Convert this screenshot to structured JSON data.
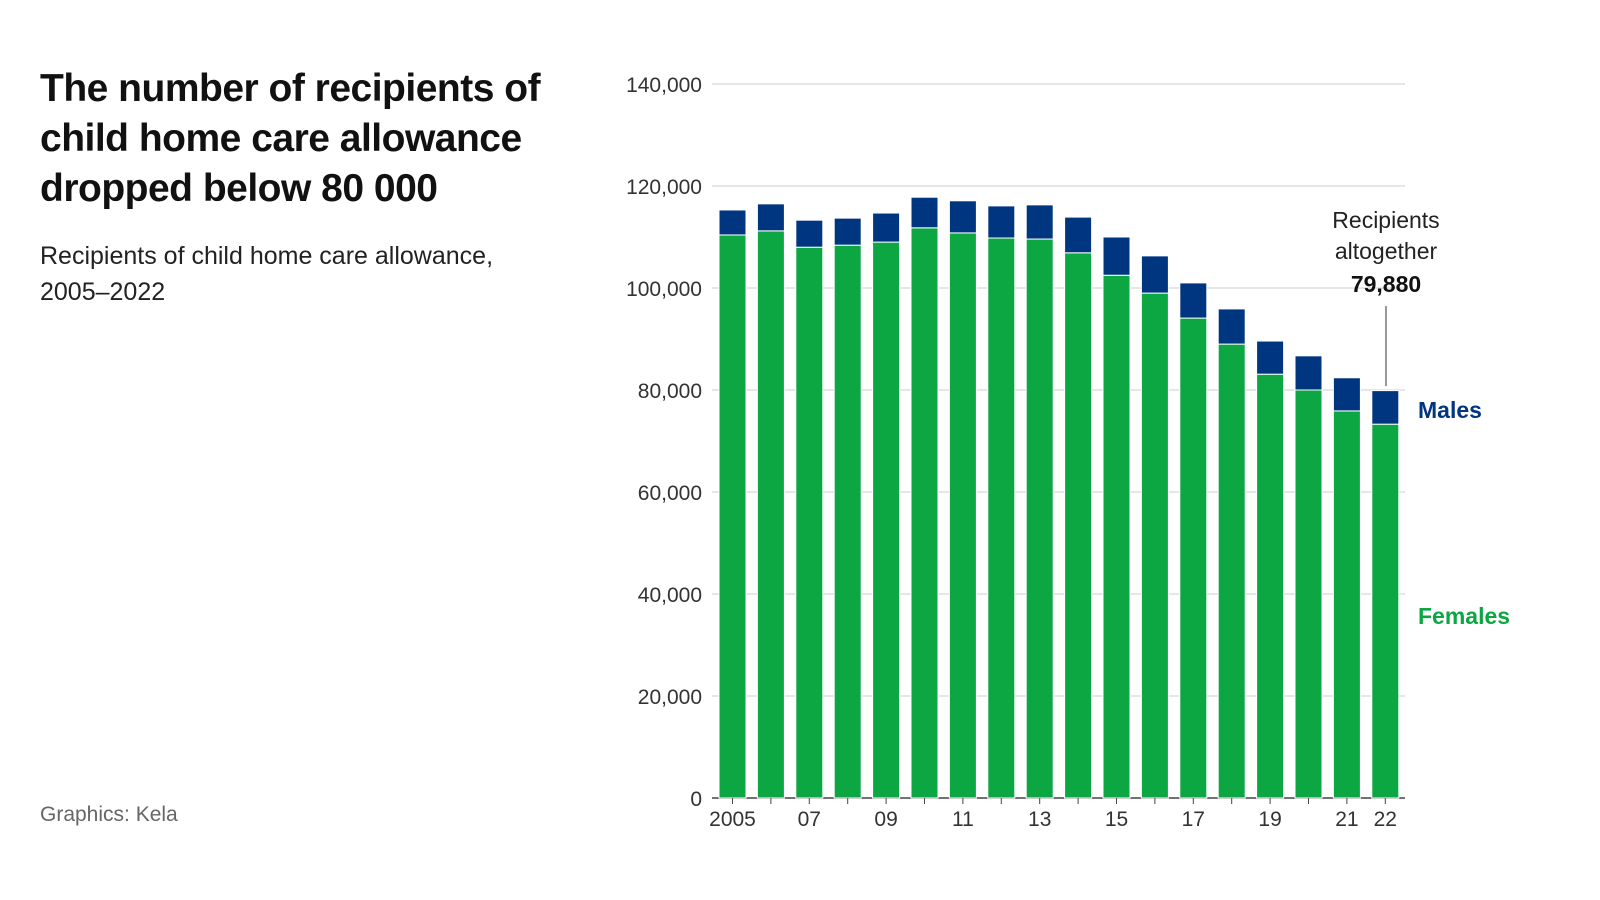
{
  "title": "The number of recipients of child home care allowance dropped below 80 000",
  "subtitle": "Recipients of child home care allowance, 2005–2022",
  "credit": "Graphics: Kela",
  "chart_data": {
    "type": "bar",
    "stacked": true,
    "categories": [
      "2005",
      "2006",
      "2007",
      "2008",
      "2009",
      "2010",
      "2011",
      "2012",
      "2013",
      "2014",
      "2015",
      "2016",
      "2017",
      "2018",
      "2019",
      "2020",
      "2021",
      "2022"
    ],
    "x_tick_labels": [
      "2005",
      "",
      "07",
      "",
      "09",
      "",
      "11",
      "",
      "13",
      "",
      "15",
      "",
      "17",
      "",
      "19",
      "",
      "21",
      "22"
    ],
    "series": [
      {
        "name": "Females",
        "color": "#0ca643",
        "values": [
          110400,
          111200,
          108000,
          108400,
          109000,
          111800,
          110800,
          109800,
          109600,
          106900,
          102500,
          99000,
          94100,
          89000,
          83100,
          80000,
          75900,
          73300
        ]
      },
      {
        "name": "Males",
        "color": "#003580",
        "values": [
          4900,
          5300,
          5300,
          5300,
          5700,
          6000,
          6300,
          6300,
          6700,
          7000,
          7500,
          7300,
          6900,
          6900,
          6500,
          6700,
          6500,
          6580
        ]
      }
    ],
    "ylim": [
      0,
      140000
    ],
    "y_ticks": [
      "0",
      "20,000",
      "40,000",
      "60,000",
      "80,000",
      "100,000",
      "120,000",
      "140,000"
    ],
    "grid": true,
    "annotation": {
      "label_line1": "Recipients",
      "label_line2": "altogether",
      "value": "79,880"
    }
  }
}
